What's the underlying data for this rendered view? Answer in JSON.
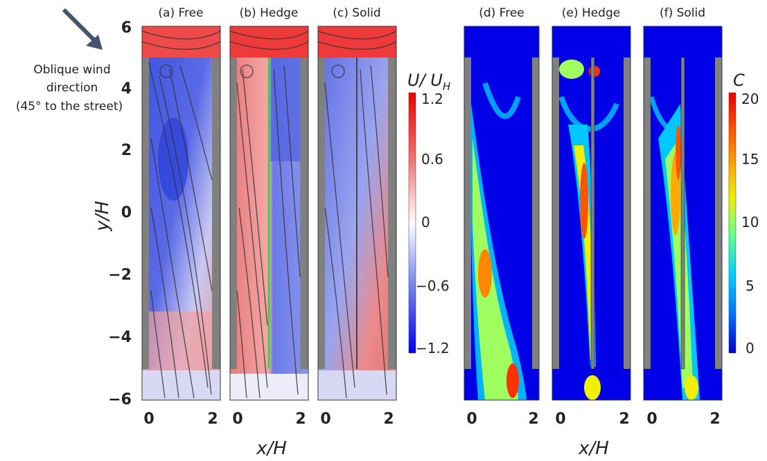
{
  "annotation": {
    "line1": "Oblique wind",
    "line2": "direction",
    "line3": "(45° to the street)"
  },
  "panel_titles": [
    "(a) Free",
    "(b) Hedge",
    "(c) Solid",
    "(d) Free",
    "(e) Hedge",
    "(f) Solid"
  ],
  "axis": {
    "ylabel": "y/H",
    "xlabel_left": "x/H",
    "xlabel_right": "x/H",
    "y_ticks": [
      "6",
      "4",
      "2",
      "0",
      "−2",
      "−4",
      "−6"
    ],
    "x_ticks": [
      "0",
      "2"
    ]
  },
  "colorbar_velocity": {
    "title": "U/U_H",
    "title_main": "U/ U",
    "title_sub": "H",
    "ticks": [
      "1.2",
      "0.6",
      "0",
      "−0.6",
      "−1.2"
    ]
  },
  "colorbar_concentration": {
    "title": "C",
    "ticks": [
      "20",
      "15",
      "10",
      "5",
      "0"
    ]
  },
  "colors": {
    "building": "#808080",
    "hedge_line": "#22dd22",
    "streamline": "#333333",
    "arrow": "#44546a"
  }
}
